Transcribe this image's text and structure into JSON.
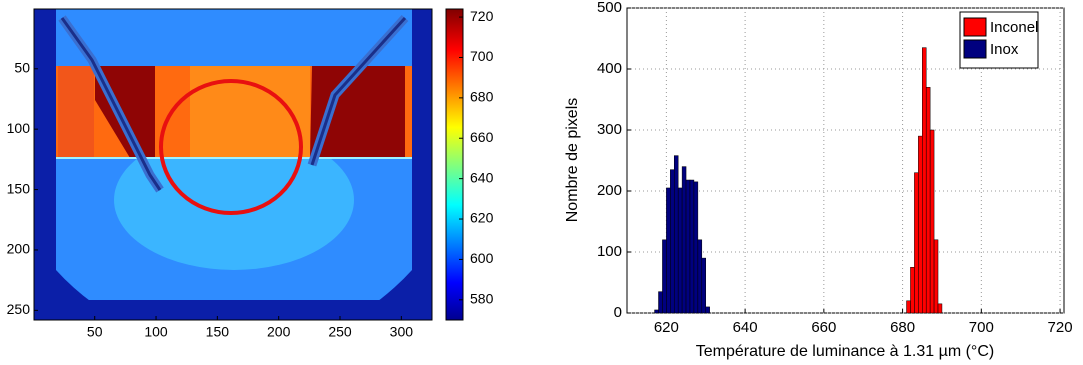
{
  "chart_data": [
    {
      "type": "heatmap",
      "xlim": [
        0.5,
        325
      ],
      "ylim": [
        0.5,
        258
      ],
      "xticks": [
        50,
        100,
        150,
        200,
        250,
        300
      ],
      "yticks": [
        50,
        100,
        150,
        200,
        250
      ],
      "clim": [
        570,
        724
      ],
      "cticks": [
        580,
        600,
        620,
        640,
        660,
        680,
        700,
        720
      ]
    },
    {
      "type": "histogram",
      "xlabel": "Température de luminance à 1.31 µm (°C)",
      "ylabel": "Nombre de pixels",
      "xlim": [
        610,
        721
      ],
      "ylim": [
        0,
        500
      ],
      "xticks": [
        620,
        640,
        660,
        680,
        700,
        720
      ],
      "yticks": [
        0,
        100,
        200,
        300,
        400,
        500
      ],
      "grid": true,
      "legend": "upper right",
      "series": [
        {
          "name": "Inconel",
          "color": "#ff0000",
          "bins": [
            681,
            682,
            683,
            684,
            685,
            686,
            687,
            688,
            689,
            690
          ],
          "values": [
            20,
            75,
            230,
            290,
            435,
            370,
            300,
            120,
            15
          ]
        },
        {
          "name": "Inox",
          "color": "#00007f",
          "bins": [
            617,
            618,
            619,
            620,
            621,
            622,
            623,
            624,
            625,
            626,
            627,
            628,
            629,
            630,
            631
          ],
          "values": [
            5,
            35,
            120,
            205,
            235,
            258,
            205,
            240,
            218,
            218,
            215,
            120,
            90,
            10
          ]
        }
      ]
    }
  ]
}
